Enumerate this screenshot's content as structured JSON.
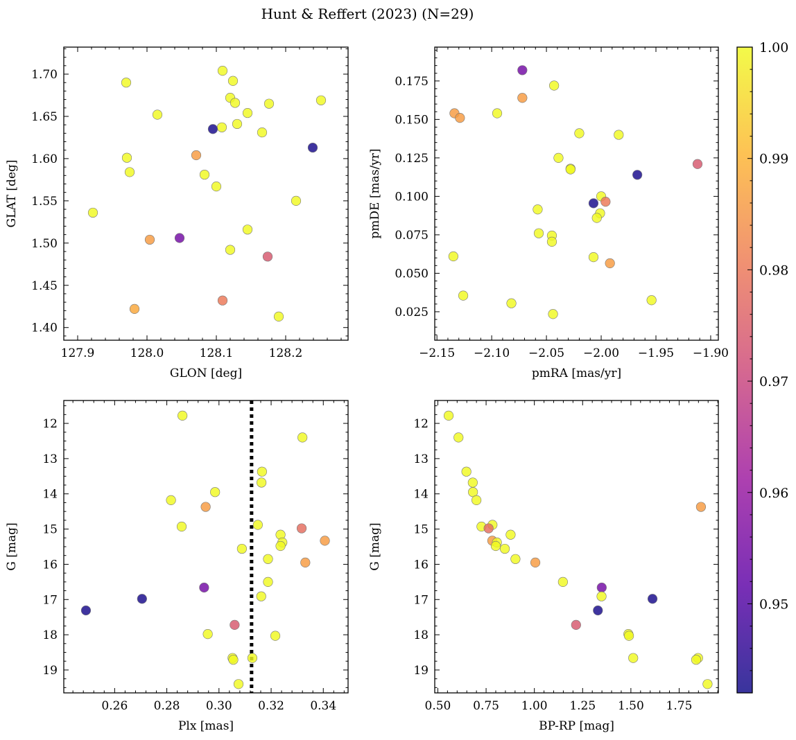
{
  "figure": {
    "title": "Hunt & Reffert (2023) (N=29)"
  },
  "colorbar": {
    "range": [
      0.942,
      1.0
    ],
    "ticks": [
      0.95,
      0.96,
      0.97,
      0.98,
      0.99,
      1.0
    ],
    "tick_labels": [
      "0.95",
      "0.96",
      "0.97",
      "0.98",
      "0.99",
      "1.00"
    ],
    "colormap_stops": [
      "#0d0887",
      "#5c01a6",
      "#9c179e",
      "#cc4778",
      "#ed7953",
      "#fdb42f",
      "#f0f921"
    ]
  },
  "chart_data": [
    {
      "type": "scatter",
      "xlabel": "GLON [deg]",
      "ylabel": "GLAT [deg]",
      "xlim": [
        127.88,
        128.29
      ],
      "ylim": [
        1.385,
        1.732
      ],
      "yinvert": false,
      "xticks": [
        127.9,
        128.0,
        128.1,
        128.2
      ],
      "xtick_labels": [
        "127.9",
        "128.0",
        "128.1",
        "128.2"
      ],
      "yticks": [
        1.4,
        1.45,
        1.5,
        1.55,
        1.6,
        1.65,
        1.7
      ],
      "ytick_labels": [
        "1.40",
        "1.45",
        "1.50",
        "1.55",
        "1.60",
        "1.65",
        "1.70"
      ],
      "points": [
        {
          "x": 128.109,
          "y": 1.704,
          "c": 1.0
        },
        {
          "x": 127.97,
          "y": 1.69,
          "c": 1.0
        },
        {
          "x": 128.124,
          "y": 1.692,
          "c": 1.0
        },
        {
          "x": 128.12,
          "y": 1.672,
          "c": 1.0
        },
        {
          "x": 128.127,
          "y": 1.666,
          "c": 1.0
        },
        {
          "x": 128.176,
          "y": 1.665,
          "c": 1.0
        },
        {
          "x": 128.251,
          "y": 1.669,
          "c": 1.0
        },
        {
          "x": 128.145,
          "y": 1.654,
          "c": 1.0
        },
        {
          "x": 128.015,
          "y": 1.652,
          "c": 1.0
        },
        {
          "x": 128.13,
          "y": 1.641,
          "c": 1.0
        },
        {
          "x": 128.108,
          "y": 1.637,
          "c": 1.0
        },
        {
          "x": 128.095,
          "y": 1.635,
          "c": 0.943
        },
        {
          "x": 128.166,
          "y": 1.631,
          "c": 1.0
        },
        {
          "x": 128.239,
          "y": 1.613,
          "c": 0.943
        },
        {
          "x": 128.071,
          "y": 1.604,
          "c": 0.986
        },
        {
          "x": 127.971,
          "y": 1.601,
          "c": 1.0
        },
        {
          "x": 127.975,
          "y": 1.584,
          "c": 1.0
        },
        {
          "x": 128.083,
          "y": 1.581,
          "c": 1.0
        },
        {
          "x": 128.1,
          "y": 1.567,
          "c": 1.0
        },
        {
          "x": 128.215,
          "y": 1.55,
          "c": 1.0
        },
        {
          "x": 127.922,
          "y": 1.536,
          "c": 1.0
        },
        {
          "x": 128.145,
          "y": 1.516,
          "c": 1.0
        },
        {
          "x": 128.004,
          "y": 1.504,
          "c": 0.986
        },
        {
          "x": 128.047,
          "y": 1.506,
          "c": 0.955
        },
        {
          "x": 128.12,
          "y": 1.492,
          "c": 1.0
        },
        {
          "x": 128.174,
          "y": 1.484,
          "c": 0.974
        },
        {
          "x": 128.109,
          "y": 1.432,
          "c": 0.98
        },
        {
          "x": 127.982,
          "y": 1.422,
          "c": 0.988
        },
        {
          "x": 128.19,
          "y": 1.413,
          "c": 1.0
        }
      ]
    },
    {
      "type": "scatter",
      "xlabel": "pmRA [mas/yr]",
      "ylabel": "pmDE [mas/yr]",
      "xlim": [
        -2.152,
        -1.893
      ],
      "ylim": [
        0.0065,
        0.197
      ],
      "yinvert": false,
      "xticks": [
        -2.15,
        -2.1,
        -2.05,
        -2.0,
        -1.95,
        -1.9
      ],
      "xtick_labels": [
        "−2.15",
        "−2.10",
        "−2.05",
        "−2.00",
        "−1.95",
        "−1.90"
      ],
      "yticks": [
        0.025,
        0.05,
        0.075,
        0.1,
        0.125,
        0.15,
        0.175
      ],
      "ytick_labels": [
        "0.025",
        "0.050",
        "0.075",
        "0.100",
        "0.125",
        "0.150",
        "0.175"
      ],
      "points": [
        {
          "x": -2.072,
          "y": 0.182,
          "c": 0.955
        },
        {
          "x": -2.043,
          "y": 0.172,
          "c": 1.0
        },
        {
          "x": -2.072,
          "y": 0.164,
          "c": 0.986
        },
        {
          "x": -2.134,
          "y": 0.154,
          "c": 0.986
        },
        {
          "x": -2.095,
          "y": 0.154,
          "c": 1.0
        },
        {
          "x": -2.129,
          "y": 0.151,
          "c": 0.986
        },
        {
          "x": -2.02,
          "y": 0.141,
          "c": 1.0
        },
        {
          "x": -1.984,
          "y": 0.14,
          "c": 1.0
        },
        {
          "x": -2.039,
          "y": 0.125,
          "c": 1.0
        },
        {
          "x": -2.028,
          "y": 0.118,
          "c": 1.0
        },
        {
          "x": -2.028,
          "y": 0.1175,
          "c": 1.0
        },
        {
          "x": -1.912,
          "y": 0.121,
          "c": 0.974
        },
        {
          "x": -1.967,
          "y": 0.114,
          "c": 0.943
        },
        {
          "x": -2.0,
          "y": 0.1,
          "c": 1.0
        },
        {
          "x": -1.996,
          "y": 0.0965,
          "c": 0.98
        },
        {
          "x": -2.007,
          "y": 0.0955,
          "c": 0.943
        },
        {
          "x": -2.058,
          "y": 0.0915,
          "c": 1.0
        },
        {
          "x": -2.001,
          "y": 0.089,
          "c": 1.0
        },
        {
          "x": -2.004,
          "y": 0.086,
          "c": 1.0
        },
        {
          "x": -2.057,
          "y": 0.076,
          "c": 1.0
        },
        {
          "x": -2.045,
          "y": 0.0745,
          "c": 1.0
        },
        {
          "x": -2.045,
          "y": 0.0705,
          "c": 1.0
        },
        {
          "x": -2.135,
          "y": 0.061,
          "c": 1.0
        },
        {
          "x": -2.007,
          "y": 0.0605,
          "c": 1.0
        },
        {
          "x": -1.992,
          "y": 0.0565,
          "c": 0.986
        },
        {
          "x": -2.126,
          "y": 0.0355,
          "c": 1.0
        },
        {
          "x": -1.954,
          "y": 0.0325,
          "c": 1.0
        },
        {
          "x": -2.082,
          "y": 0.0305,
          "c": 1.0
        },
        {
          "x": -2.044,
          "y": 0.0235,
          "c": 1.0
        }
      ]
    },
    {
      "type": "scatter",
      "xlabel": "Plx [mas]",
      "ylabel": "G [mag]",
      "xlim": [
        0.2405,
        0.3495
      ],
      "ylim": [
        11.35,
        19.65
      ],
      "yinvert": true,
      "xticks": [
        0.26,
        0.28,
        0.3,
        0.32,
        0.34
      ],
      "xtick_labels": [
        "0.26",
        "0.28",
        "0.30",
        "0.32",
        "0.34"
      ],
      "yticks": [
        12,
        13,
        14,
        15,
        16,
        17,
        18,
        19
      ],
      "ytick_labels": [
        "12",
        "13",
        "14",
        "15",
        "16",
        "17",
        "18",
        "19"
      ],
      "vline": 0.3125,
      "points": [
        {
          "x": 0.286,
          "y": 11.78,
          "c": 1.0
        },
        {
          "x": 0.332,
          "y": 12.4,
          "c": 1.0
        },
        {
          "x": 0.3165,
          "y": 13.37,
          "c": 1.0
        },
        {
          "x": 0.3163,
          "y": 13.68,
          "c": 1.0
        },
        {
          "x": 0.2985,
          "y": 13.95,
          "c": 1.0
        },
        {
          "x": 0.2816,
          "y": 14.18,
          "c": 1.0
        },
        {
          "x": 0.2949,
          "y": 14.37,
          "c": 0.986
        },
        {
          "x": 0.3149,
          "y": 14.88,
          "c": 1.0
        },
        {
          "x": 0.2857,
          "y": 14.93,
          "c": 1.0
        },
        {
          "x": 0.3317,
          "y": 14.98,
          "c": 0.978
        },
        {
          "x": 0.3236,
          "y": 15.16,
          "c": 1.0
        },
        {
          "x": 0.3406,
          "y": 15.33,
          "c": 0.986
        },
        {
          "x": 0.3243,
          "y": 15.38,
          "c": 1.0
        },
        {
          "x": 0.3236,
          "y": 15.48,
          "c": 1.0
        },
        {
          "x": 0.3088,
          "y": 15.56,
          "c": 1.0
        },
        {
          "x": 0.3188,
          "y": 15.85,
          "c": 1.0
        },
        {
          "x": 0.3331,
          "y": 15.95,
          "c": 0.986
        },
        {
          "x": 0.3188,
          "y": 16.5,
          "c": 1.0
        },
        {
          "x": 0.2943,
          "y": 16.66,
          "c": 0.955
        },
        {
          "x": 0.3162,
          "y": 16.91,
          "c": 1.0
        },
        {
          "x": 0.2705,
          "y": 16.98,
          "c": 0.943
        },
        {
          "x": 0.249,
          "y": 17.31,
          "c": 0.943
        },
        {
          "x": 0.306,
          "y": 17.72,
          "c": 0.974
        },
        {
          "x": 0.2957,
          "y": 17.98,
          "c": 1.0
        },
        {
          "x": 0.3216,
          "y": 18.03,
          "c": 1.0
        },
        {
          "x": 0.3052,
          "y": 18.66,
          "c": 1.0
        },
        {
          "x": 0.3128,
          "y": 18.66,
          "c": 1.0
        },
        {
          "x": 0.3055,
          "y": 18.71,
          "c": 1.0
        },
        {
          "x": 0.3075,
          "y": 19.4,
          "c": 1.0
        }
      ]
    },
    {
      "type": "scatter",
      "xlabel": "BP-RP [mag]",
      "ylabel": "G [mag]",
      "xlim": [
        0.484,
        1.953
      ],
      "ylim": [
        11.35,
        19.65
      ],
      "yinvert": true,
      "xticks": [
        0.5,
        0.75,
        1.0,
        1.25,
        1.5,
        1.75
      ],
      "xtick_labels": [
        "0.50",
        "0.75",
        "1.00",
        "1.25",
        "1.50",
        "1.75"
      ],
      "yticks": [
        12,
        13,
        14,
        15,
        16,
        17,
        18,
        19
      ],
      "ytick_labels": [
        "12",
        "13",
        "14",
        "15",
        "16",
        "17",
        "18",
        "19"
      ],
      "points": [
        {
          "x": 0.556,
          "y": 11.78,
          "c": 1.0
        },
        {
          "x": 0.607,
          "y": 12.4,
          "c": 1.0
        },
        {
          "x": 0.648,
          "y": 13.37,
          "c": 1.0
        },
        {
          "x": 0.681,
          "y": 13.68,
          "c": 1.0
        },
        {
          "x": 0.682,
          "y": 13.95,
          "c": 1.0
        },
        {
          "x": 0.7,
          "y": 14.18,
          "c": 1.0
        },
        {
          "x": 1.863,
          "y": 14.37,
          "c": 0.986
        },
        {
          "x": 0.783,
          "y": 14.88,
          "c": 1.0
        },
        {
          "x": 0.726,
          "y": 14.93,
          "c": 1.0
        },
        {
          "x": 0.763,
          "y": 14.98,
          "c": 0.978
        },
        {
          "x": 0.877,
          "y": 15.16,
          "c": 1.0
        },
        {
          "x": 0.782,
          "y": 15.33,
          "c": 0.986
        },
        {
          "x": 0.806,
          "y": 15.38,
          "c": 1.0
        },
        {
          "x": 0.8,
          "y": 15.48,
          "c": 1.0
        },
        {
          "x": 0.847,
          "y": 15.56,
          "c": 1.0
        },
        {
          "x": 0.902,
          "y": 15.85,
          "c": 1.0
        },
        {
          "x": 1.005,
          "y": 15.95,
          "c": 0.986
        },
        {
          "x": 1.148,
          "y": 16.5,
          "c": 1.0
        },
        {
          "x": 1.349,
          "y": 16.66,
          "c": 0.955
        },
        {
          "x": 1.348,
          "y": 16.91,
          "c": 1.0
        },
        {
          "x": 1.612,
          "y": 16.98,
          "c": 0.943
        },
        {
          "x": 1.329,
          "y": 17.31,
          "c": 0.943
        },
        {
          "x": 1.216,
          "y": 17.72,
          "c": 0.974
        },
        {
          "x": 1.487,
          "y": 17.98,
          "c": 1.0
        },
        {
          "x": 1.49,
          "y": 18.03,
          "c": 1.0
        },
        {
          "x": 1.848,
          "y": 18.66,
          "c": 1.0
        },
        {
          "x": 1.512,
          "y": 18.66,
          "c": 1.0
        },
        {
          "x": 1.838,
          "y": 18.71,
          "c": 1.0
        },
        {
          "x": 1.897,
          "y": 19.4,
          "c": 1.0
        }
      ]
    }
  ]
}
